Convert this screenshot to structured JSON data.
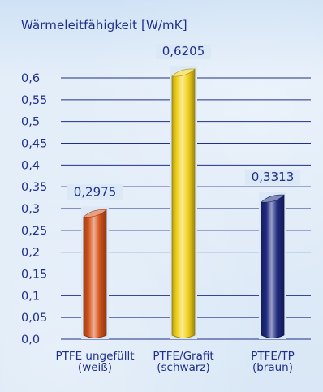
{
  "chart_data": {
    "type": "bar",
    "title": "Wärmeleitfähigkeit [W/mK]",
    "ylabel": "",
    "xlabel": "",
    "ylim": [
      0,
      0.6
    ],
    "yticks": [
      "0,0",
      "0,05",
      "0,1",
      "0,15",
      "0,2",
      "0,25",
      "0,3",
      "0,35",
      "0,4",
      "0,45",
      "0,5",
      "0,55",
      "0,6"
    ],
    "grid": true,
    "categories": [
      [
        "PTFE ungefüllt",
        "(weiß)"
      ],
      [
        "PTFE/Grafit",
        "(schwarz)"
      ],
      [
        "PTFE/TP",
        "(braun)"
      ]
    ],
    "values": [
      0.2975,
      0.6205,
      0.3313
    ],
    "value_labels": [
      "0,2975",
      "0,6205",
      "0,3313"
    ],
    "colors": [
      "#d4541c",
      "#f2d21c",
      "#1f2a80"
    ]
  }
}
